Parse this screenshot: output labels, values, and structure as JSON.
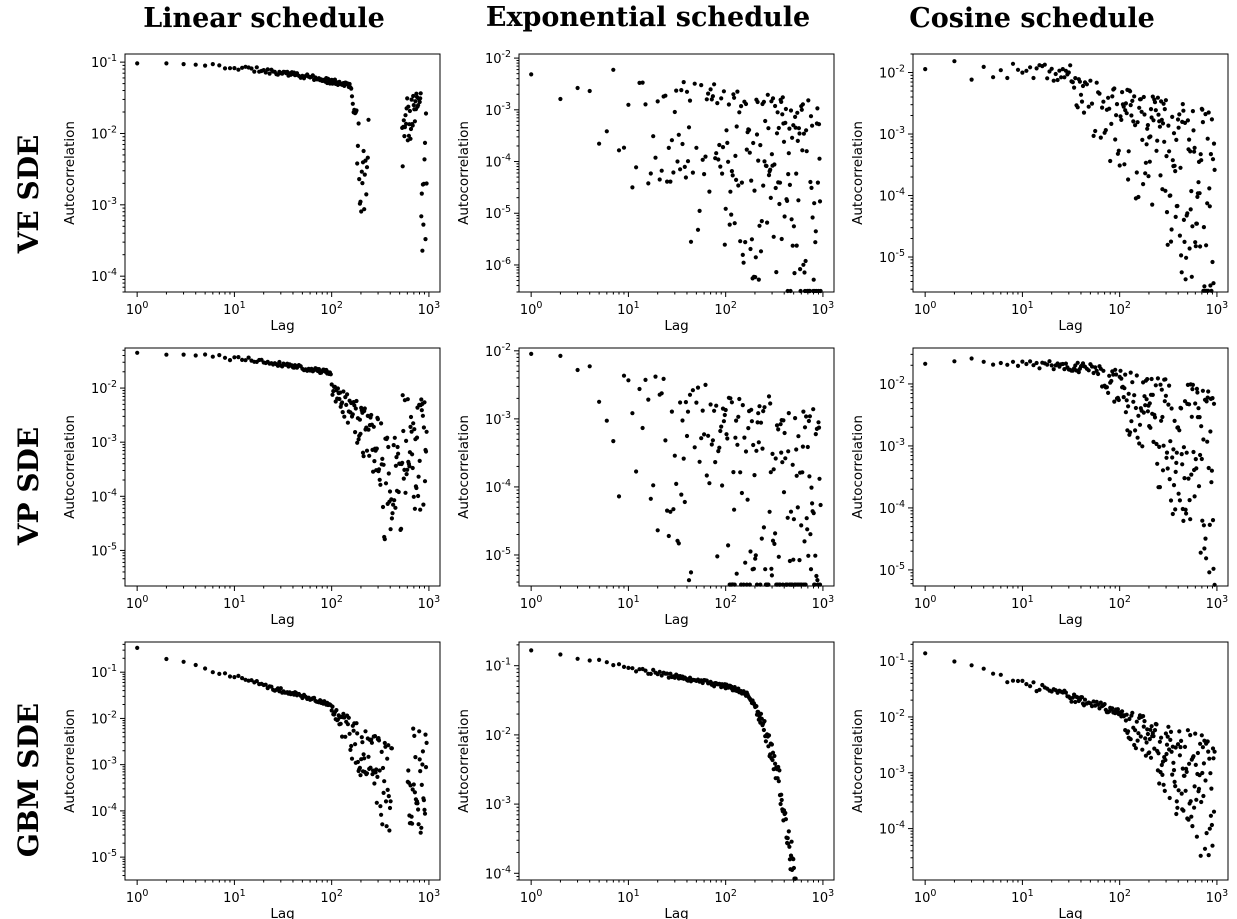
{
  "figure": {
    "column_titles": [
      "Linear schedule",
      "Exponential schedule",
      "Cosine schedule"
    ],
    "row_titles": [
      "VE SDE",
      "VP SDE",
      "GBM SDE"
    ],
    "colors": {
      "points": "#000000",
      "axes": "#000000",
      "background": "#ffffff"
    }
  },
  "chart_data": [
    {
      "type": "scatter",
      "row": "VE SDE",
      "column": "Linear schedule",
      "xlabel": "Lag",
      "ylabel": "Autocorrelation",
      "xscale": "log",
      "yscale": "log",
      "xlim": [
        0.75,
        1300
      ],
      "ylim": [
        6e-05,
        0.13
      ],
      "xticks": [
        1,
        10,
        100,
        1000
      ],
      "yticks": [
        0.0001,
        0.001,
        0.01,
        0.1
      ],
      "grid": false,
      "profile": "A",
      "seed": 11
    },
    {
      "type": "scatter",
      "row": "VE SDE",
      "column": "Exponential schedule",
      "xlabel": "Lag",
      "ylabel": "Autocorrelation",
      "xscale": "log",
      "yscale": "log",
      "xlim": [
        0.75,
        1300
      ],
      "ylim": [
        3e-07,
        0.012
      ],
      "xticks": [
        1,
        10,
        100,
        1000
      ],
      "yticks": [
        1e-06,
        1e-05,
        0.0001,
        0.001,
        0.01
      ],
      "grid": false,
      "profile": "B",
      "seed": 23
    },
    {
      "type": "scatter",
      "row": "VE SDE",
      "column": "Cosine schedule",
      "xlabel": "Lag",
      "ylabel": "Autocorrelation",
      "xscale": "log",
      "yscale": "log",
      "xlim": [
        0.75,
        1300
      ],
      "ylim": [
        2.7e-06,
        0.02
      ],
      "xticks": [
        1,
        10,
        100,
        1000
      ],
      "yticks": [
        1e-05,
        0.0001,
        0.001,
        0.01
      ],
      "grid": false,
      "profile": "C",
      "seed": 37
    },
    {
      "type": "scatter",
      "row": "VP SDE",
      "column": "Linear schedule",
      "xlabel": "Lag",
      "ylabel": "Autocorrelation",
      "xscale": "log",
      "yscale": "log",
      "xlim": [
        0.75,
        1300
      ],
      "ylim": [
        2.2e-06,
        0.055
      ],
      "xticks": [
        1,
        10,
        100,
        1000
      ],
      "yticks": [
        1e-05,
        0.0001,
        0.001,
        0.01
      ],
      "grid": false,
      "profile": "D",
      "seed": 41
    },
    {
      "type": "scatter",
      "row": "VP SDE",
      "column": "Exponential schedule",
      "xlabel": "Lag",
      "ylabel": "Autocorrelation",
      "xscale": "log",
      "yscale": "log",
      "xlim": [
        0.75,
        1300
      ],
      "ylim": [
        3.5e-06,
        0.011
      ],
      "xticks": [
        1,
        10,
        100,
        1000
      ],
      "yticks": [
        1e-05,
        0.0001,
        0.001,
        0.01
      ],
      "grid": false,
      "profile": "B",
      "seed": 53
    },
    {
      "type": "scatter",
      "row": "VP SDE",
      "column": "Cosine schedule",
      "xlabel": "Lag",
      "ylabel": "Autocorrelation",
      "xscale": "log",
      "yscale": "log",
      "xlim": [
        0.75,
        1300
      ],
      "ylim": [
        5.5e-06,
        0.038
      ],
      "xticks": [
        1,
        10,
        100,
        1000
      ],
      "yticks": [
        1e-05,
        0.0001,
        0.001,
        0.01
      ],
      "grid": false,
      "profile": "E",
      "seed": 67
    },
    {
      "type": "scatter",
      "row": "GBM SDE",
      "column": "Linear schedule",
      "xlabel": "Lag",
      "ylabel": "Autocorrelation",
      "xscale": "log",
      "yscale": "log",
      "xlim": [
        0.75,
        1300
      ],
      "ylim": [
        3.2e-06,
        0.45
      ],
      "xticks": [
        1,
        10,
        100,
        1000
      ],
      "yticks": [
        1e-05,
        0.0001,
        0.001,
        0.01,
        0.1
      ],
      "grid": false,
      "profile": "F",
      "seed": 71
    },
    {
      "type": "scatter",
      "row": "GBM SDE",
      "column": "Exponential schedule",
      "xlabel": "Lag",
      "ylabel": "Autocorrelation",
      "xscale": "log",
      "yscale": "log",
      "xlim": [
        0.75,
        1300
      ],
      "ylim": [
        8e-05,
        0.22
      ],
      "xticks": [
        1,
        10,
        100,
        1000
      ],
      "yticks": [
        0.0001,
        0.001,
        0.01,
        0.1
      ],
      "grid": false,
      "profile": "G",
      "seed": 83
    },
    {
      "type": "scatter",
      "row": "GBM SDE",
      "column": "Cosine schedule",
      "xlabel": "Lag",
      "ylabel": "Autocorrelation",
      "xscale": "log",
      "yscale": "log",
      "xlim": [
        0.75,
        1300
      ],
      "ylim": [
        1.2e-05,
        0.22
      ],
      "xticks": [
        1,
        10,
        100,
        1000
      ],
      "yticks": [
        0.0001,
        0.001,
        0.01,
        0.1
      ],
      "grid": false,
      "profile": "H",
      "seed": 97
    }
  ]
}
